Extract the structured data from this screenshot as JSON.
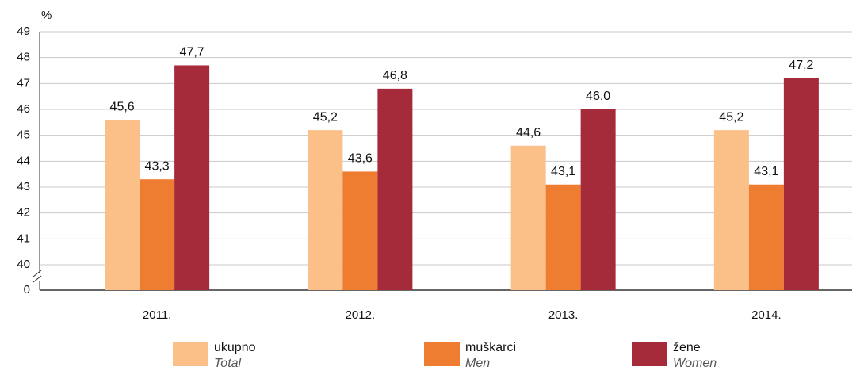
{
  "chart_data": {
    "type": "bar",
    "ylabel": "%",
    "categories": [
      "2011.",
      "2012.",
      "2013.",
      "2014."
    ],
    "series": [
      {
        "name": "ukupno",
        "name_en": "Total",
        "color": "#fbbf88",
        "values": [
          45.6,
          45.2,
          44.6,
          45.2
        ],
        "value_labels": [
          "45,6",
          "45,2",
          "44,6",
          "45,2"
        ]
      },
      {
        "name": "muškarci",
        "name_en": "Men",
        "color": "#ee7d31",
        "values": [
          43.3,
          43.6,
          43.1,
          43.1
        ],
        "value_labels": [
          "43,3",
          "43,6",
          "43,1",
          "43,1"
        ]
      },
      {
        "name": "žene",
        "name_en": "Women",
        "color": "#a52a3a",
        "values": [
          47.7,
          46.8,
          46.0,
          47.2
        ],
        "value_labels": [
          "47,7",
          "46,8",
          "46,0",
          "47,2"
        ]
      }
    ],
    "ylim": [
      0,
      49
    ],
    "yticks": [
      0,
      40,
      41,
      42,
      43,
      44,
      45,
      46,
      47,
      48,
      49
    ],
    "grid": true,
    "broken_axis": true
  }
}
